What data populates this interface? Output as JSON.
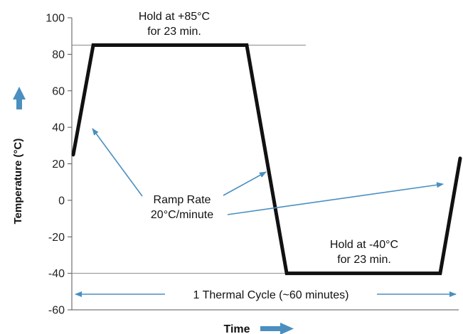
{
  "chart_data": {
    "type": "line",
    "xlabel": "Time",
    "ylabel": "Temperature (°C)",
    "ylim": [
      -60,
      100
    ],
    "yticks": [
      100,
      80,
      60,
      40,
      20,
      0,
      -20,
      -40,
      -60
    ],
    "grid": false,
    "series": [
      {
        "values": [
          {
            "x": 0,
            "y": 25
          },
          {
            "x": 3,
            "y": 85
          },
          {
            "x": 26,
            "y": 85
          },
          {
            "x": 32,
            "y": -40
          },
          {
            "x": 55,
            "y": -40
          },
          {
            "x": 58,
            "y": 23
          }
        ]
      }
    ],
    "reference_lines": [
      85,
      -40
    ],
    "annotations": {
      "hold_high": [
        "Hold at +85°C",
        "for 23 min."
      ],
      "hold_low": [
        "Hold at -40°C",
        "for 23 min."
      ],
      "ramp": [
        "Ramp Rate",
        "20°C/minute"
      ],
      "cycle": "1 Thermal Cycle (~60 minutes)"
    },
    "colors": {
      "line": "#111111",
      "arrow": "#4a8fc0",
      "axis": "#555555"
    }
  }
}
